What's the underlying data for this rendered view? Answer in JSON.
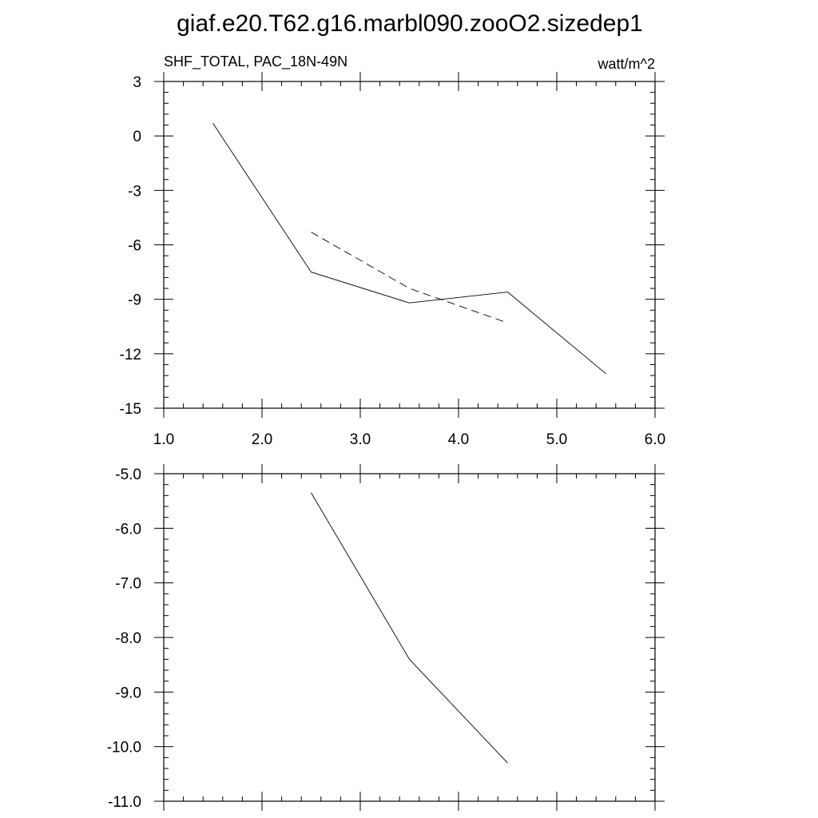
{
  "figure": {
    "title": "giaf.e20.T62.g16.marbl090.zooO2.sizedep1"
  },
  "chart_data": [
    {
      "type": "line",
      "title": "",
      "left_label": "SHF_TOTAL, PAC_18N-49N",
      "right_label": "watt/m^2",
      "xlabel": "",
      "ylabel": "",
      "xlim": [
        1.0,
        6.0
      ],
      "ylim": [
        -15,
        3
      ],
      "x_ticks": [
        1.0,
        2.0,
        3.0,
        4.0,
        5.0,
        6.0
      ],
      "x_tick_labels": [
        "1.0",
        "2.0",
        "3.0",
        "4.0",
        "5.0",
        "6.0"
      ],
      "y_ticks": [
        3,
        0,
        -3,
        -6,
        -9,
        -12,
        -15
      ],
      "y_tick_labels": [
        "3",
        "0",
        "-3",
        "-6",
        "-9",
        "-12",
        "-15"
      ],
      "grid": false,
      "series": [
        {
          "style": "solid",
          "color": "#000000",
          "x": [
            1.5,
            2.5,
            3.5,
            4.5,
            5.5
          ],
          "y": [
            0.7,
            -7.5,
            -9.2,
            -8.6,
            -13.1
          ]
        },
        {
          "style": "dashed",
          "color": "#000000",
          "x": [
            2.5,
            3.5,
            4.5
          ],
          "y": [
            -5.3,
            -8.4,
            -10.3
          ]
        }
      ]
    },
    {
      "type": "line",
      "title": "",
      "xlabel": "",
      "ylabel": "",
      "xlim": [
        1.0,
        6.0
      ],
      "ylim": [
        -11.0,
        -5.0
      ],
      "x_ticks": [
        1.0,
        2.0,
        3.0,
        4.0,
        5.0,
        6.0
      ],
      "y_ticks": [
        -5.0,
        -6.0,
        -7.0,
        -8.0,
        -9.0,
        -10.0,
        -11.0
      ],
      "y_tick_labels": [
        "-5.0",
        "-6.0",
        "-7.0",
        "-8.0",
        "-9.0",
        "-10.0",
        "-11.0"
      ],
      "grid": false,
      "series": [
        {
          "style": "solid",
          "color": "#000000",
          "x": [
            2.5,
            3.5,
            4.5
          ],
          "y": [
            -5.35,
            -8.4,
            -10.3
          ]
        }
      ]
    }
  ]
}
